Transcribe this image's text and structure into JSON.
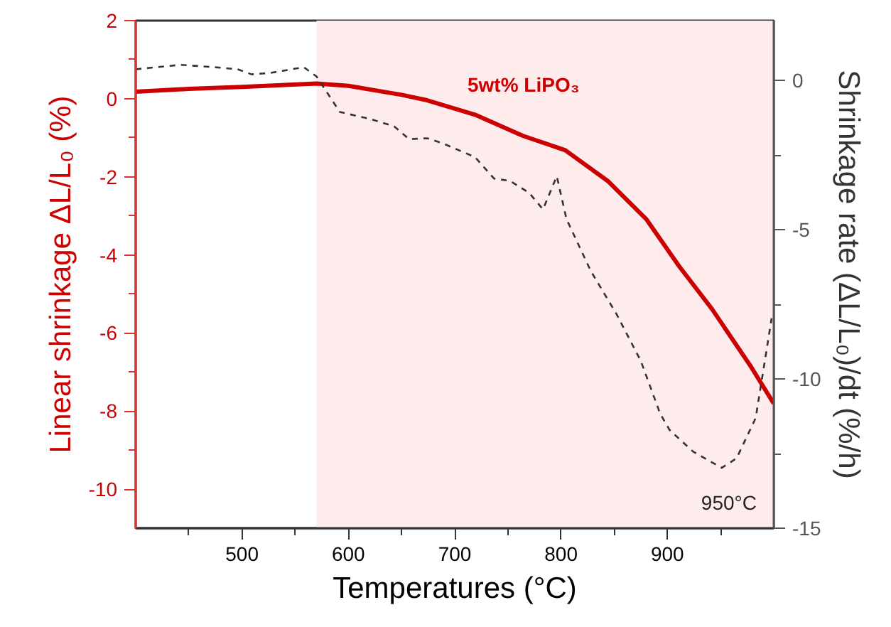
{
  "chart_data": {
    "type": "line",
    "xlabel": "Temperatures (°C)",
    "ylabel": "Linear shrinkage ΔL/L₀ (%)",
    "y2label": "Shrinkage rate (ΔL/L₀)/dt (%/h)",
    "xlim": [
      400,
      1000
    ],
    "ylim": [
      -11,
      2
    ],
    "y2lim": [
      -15,
      2
    ],
    "xticks": [
      {
        "value": 450,
        "label": null
      },
      500,
      {
        "value": 550,
        "label": null
      },
      600,
      {
        "value": 650,
        "label": null
      },
      700,
      {
        "value": 750,
        "label": null
      },
      800,
      {
        "value": 850,
        "label": null
      },
      900,
      {
        "value": 950,
        "label": null
      }
    ],
    "yticks": [
      2,
      {
        "value": 1,
        "label": null
      },
      0,
      {
        "value": -1,
        "label": null
      },
      -2,
      {
        "value": -3,
        "label": null
      },
      -4,
      {
        "value": -5,
        "label": null
      },
      -6,
      {
        "value": -7,
        "label": null
      },
      -8,
      {
        "value": -9,
        "label": null
      },
      -10
    ],
    "y2ticks": [
      0,
      {
        "value": -2.5,
        "label": null
      },
      -5,
      {
        "value": -7.5,
        "label": null
      },
      -10,
      {
        "value": -12.5,
        "label": null
      },
      -15
    ],
    "grid": false,
    "series": [
      {
        "name": "5wt% LiPO₃",
        "color": "#cc0000",
        "line_style": "solid",
        "x": [
          400,
          450,
          500,
          570,
          600,
          650,
          674,
          719,
          764,
          804,
          844,
          880,
          911,
          942,
          978,
          1000
        ],
        "values": [
          0.18,
          0.25,
          0.3,
          0.39,
          0.33,
          0.1,
          -0.04,
          -0.41,
          -0.95,
          -1.32,
          -2.11,
          -3.08,
          -4.29,
          -5.39,
          -6.84,
          -7.81
        ]
      },
      {
        "color": "#333333",
        "line_style": "dashed",
        "axis": "y2",
        "x": [
          400,
          442,
          474,
          496,
          509,
          527,
          558,
          570,
          592,
          621,
          643,
          657,
          674,
          688,
          719,
          737,
          752,
          770,
          783,
          796,
          805,
          828,
          852,
          875,
          893,
          902,
          924,
          951,
          965,
          983,
          998
        ],
        "values": [
          0.37,
          0.52,
          0.44,
          0.37,
          0.2,
          0.25,
          0.44,
          0.13,
          -1.06,
          -1.3,
          -1.54,
          -1.97,
          -1.94,
          -2.1,
          -2.57,
          -3.29,
          -3.37,
          -3.77,
          -4.32,
          -3.21,
          -4.64,
          -6.39,
          -7.82,
          -9.4,
          -11.15,
          -11.71,
          -12.43,
          -12.98,
          -12.66,
          -11.31,
          -7.97
        ]
      }
    ],
    "bands": [
      {
        "axis": "x",
        "from": 570,
        "to": 1000,
        "color": "#fdeceb"
      }
    ],
    "annotations": [
      "950°C"
    ]
  }
}
